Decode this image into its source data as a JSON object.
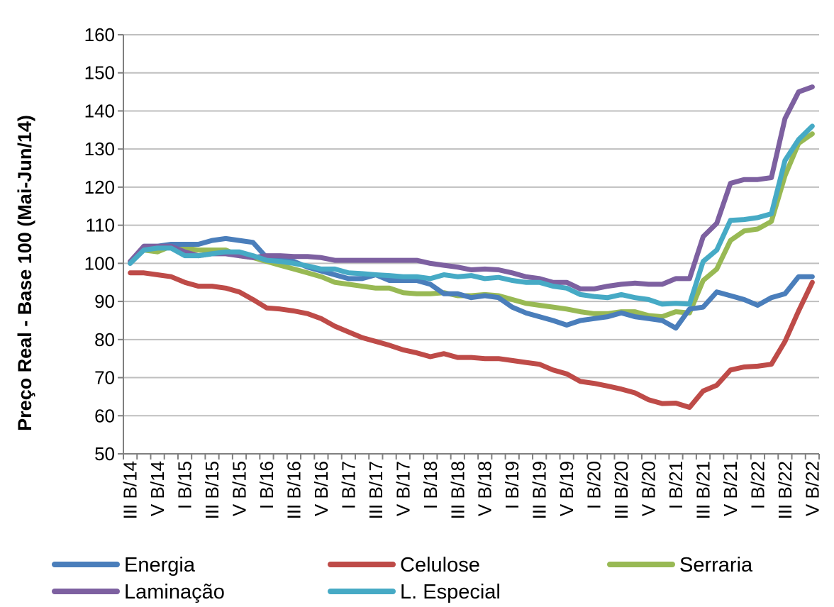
{
  "chart_data": {
    "type": "line",
    "ylabel": "Preço Real - Base 100 (Mai-Jun/14)",
    "xlabel": "",
    "title": "",
    "ylim": [
      50,
      160
    ],
    "yticks": [
      50,
      60,
      70,
      80,
      90,
      100,
      110,
      120,
      130,
      140,
      150,
      160
    ],
    "grid": true,
    "legend_position": "bottom",
    "categories": [
      "III B/14",
      "IV B/14",
      "V B/14",
      "VI B/14",
      "I B/15",
      "II B/15",
      "III B/15",
      "IV B/15",
      "V B/15",
      "VI B/15",
      "I B/16",
      "II B/16",
      "III B/16",
      "IV B/16",
      "V B/16",
      "VI B/16",
      "I B/17",
      "II B/17",
      "III B/17",
      "IV B/17",
      "V B/17",
      "VI B/17",
      "I B/18",
      "II B/18",
      "III B/18",
      "IV B/18",
      "V B/18",
      "VI B/18",
      "I B/19",
      "II B/19",
      "III B/19",
      "IV B/19",
      "V B/19",
      "VI B/19",
      "I B/20",
      "II B/20",
      "III B/20",
      "IV B/20",
      "V B/20",
      "VI B/20",
      "I B/21",
      "II B/21",
      "III B/21",
      "IV B/21",
      "V B/21",
      "VI B/21",
      "I B/22",
      "II B/22",
      "III B/22",
      "IV B/22",
      "V B/22"
    ],
    "xtick_labels": [
      "III B/14",
      "V B/14",
      "I B/15",
      "III B/15",
      "V B/15",
      "I B/16",
      "III B/16",
      "V B/16",
      "I B/17",
      "III B/17",
      "V B/17",
      "I B/18",
      "III B/18",
      "V B/18",
      "I B/19",
      "III B/19",
      "V B/19",
      "I B/20",
      "III B/20",
      "V B/20",
      "I B/21",
      "III B/21",
      "V B/21",
      "I B/22",
      "III B/22",
      "V B/22"
    ],
    "series": [
      {
        "name": "Energia",
        "color": "#4a7ebb",
        "values": [
          100.0,
          104.5,
          104.5,
          105.0,
          105.0,
          105.0,
          106.0,
          106.5,
          106.0,
          105.5,
          101.5,
          101.0,
          100.5,
          99.0,
          98.0,
          97.0,
          96.0,
          96.0,
          97.0,
          95.5,
          95.5,
          95.5,
          94.5,
          92.0,
          92.0,
          91.0,
          91.5,
          91.0,
          88.5,
          87.0,
          86.0,
          85.0,
          83.8,
          85.0,
          85.5,
          86.0,
          87.0,
          86.0,
          85.5,
          85.0,
          83.0,
          88.0,
          88.5,
          92.5,
          91.5,
          90.5,
          89.0,
          91.0,
          92.0,
          96.5,
          96.5
        ]
      },
      {
        "name": "Celulose",
        "color": "#be4b48",
        "values": [
          97.5,
          97.5,
          97.0,
          96.5,
          95.0,
          94.0,
          94.0,
          93.5,
          92.5,
          90.5,
          88.3,
          88.0,
          87.5,
          86.8,
          85.5,
          83.5,
          82.0,
          80.5,
          79.5,
          78.5,
          77.3,
          76.5,
          75.5,
          76.3,
          75.3,
          75.3,
          75.0,
          75.0,
          74.5,
          74.0,
          73.5,
          72.0,
          71.0,
          69.0,
          68.5,
          67.8,
          67.0,
          66.0,
          64.2,
          63.2,
          63.3,
          62.2,
          66.5,
          68.0,
          72.0,
          72.8,
          73.0,
          73.5,
          79.5,
          87.5,
          95.0
        ]
      },
      {
        "name": "Serraria",
        "color": "#98b954",
        "values": [
          100.5,
          103.5,
          103.0,
          104.5,
          104.0,
          103.5,
          103.5,
          103.5,
          102.0,
          101.5,
          100.5,
          99.5,
          98.5,
          97.5,
          96.5,
          95.0,
          94.5,
          94.0,
          93.5,
          93.5,
          92.3,
          92.0,
          92.0,
          92.3,
          91.5,
          91.5,
          91.8,
          91.5,
          90.5,
          89.5,
          89.0,
          88.5,
          88.0,
          87.3,
          86.8,
          86.8,
          87.3,
          87.3,
          86.3,
          86.0,
          87.3,
          87.0,
          95.5,
          98.5,
          106.0,
          108.5,
          109.0,
          111.0,
          123.0,
          131.5,
          134.0
        ]
      },
      {
        "name": "Laminação",
        "color": "#7d60a0",
        "values": [
          100.5,
          104.5,
          104.5,
          104.5,
          103.0,
          102.0,
          102.5,
          102.5,
          102.0,
          101.5,
          102.0,
          102.0,
          101.8,
          101.8,
          101.5,
          100.8,
          100.8,
          100.8,
          100.8,
          100.8,
          100.8,
          100.8,
          100.0,
          99.5,
          99.0,
          98.3,
          98.5,
          98.3,
          97.5,
          96.5,
          96.0,
          95.0,
          95.0,
          93.3,
          93.3,
          94.0,
          94.5,
          94.8,
          94.5,
          94.5,
          96.0,
          96.0,
          107.0,
          110.5,
          121.0,
          122.0,
          122.0,
          122.5,
          138.0,
          145.0,
          146.3
        ]
      },
      {
        "name": "L. Especial",
        "color": "#46aac5",
        "values": [
          100.0,
          103.5,
          104.0,
          104.0,
          102.0,
          102.0,
          102.5,
          103.0,
          103.0,
          102.0,
          100.8,
          100.5,
          100.0,
          99.3,
          98.5,
          98.5,
          97.5,
          97.3,
          97.0,
          96.8,
          96.5,
          96.5,
          96.0,
          97.0,
          96.5,
          96.8,
          96.0,
          96.3,
          95.5,
          95.0,
          95.0,
          94.0,
          93.5,
          91.8,
          91.3,
          91.0,
          91.8,
          91.0,
          90.5,
          89.3,
          89.5,
          89.3,
          100.5,
          103.5,
          111.3,
          111.5,
          112.0,
          113.0,
          127.0,
          132.5,
          136.0
        ]
      }
    ]
  }
}
